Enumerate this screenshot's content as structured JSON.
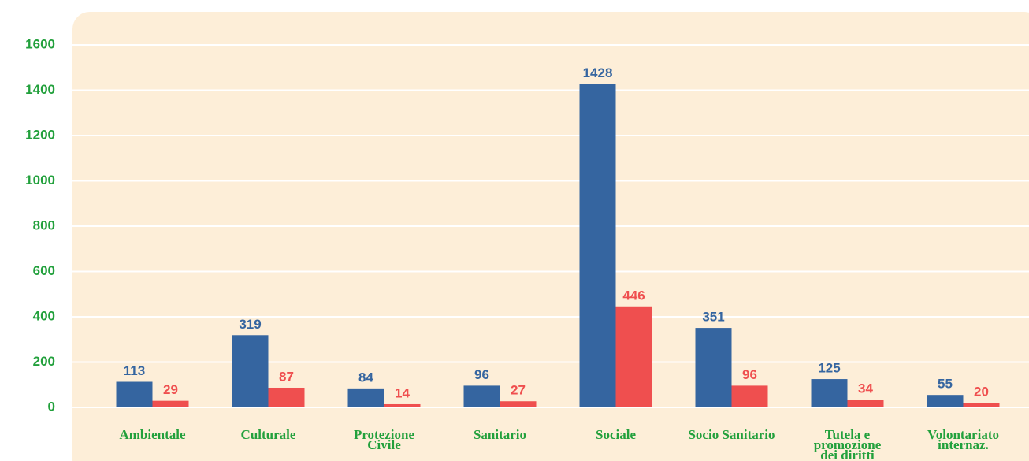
{
  "chart_data": {
    "type": "bar",
    "categories": [
      "Ambientale",
      "Culturale",
      "Protezione\nCivile",
      "Sanitario",
      "Sociale",
      "Socio Sanitario",
      "Tutela e\npromozione\ndei diritti",
      "Volontariato\ninternaz."
    ],
    "series": [
      {
        "color": "#3565a0",
        "values": [
          113,
          319,
          84,
          96,
          1428,
          351,
          125,
          55
        ]
      },
      {
        "color": "#ef4f4f",
        "values": [
          29,
          87,
          14,
          27,
          446,
          96,
          34,
          20
        ]
      }
    ],
    "ylim": [
      0,
      1600
    ],
    "yticks": [
      0,
      200,
      400,
      600,
      800,
      1000,
      1200,
      1400,
      1600
    ],
    "grid": true
  }
}
